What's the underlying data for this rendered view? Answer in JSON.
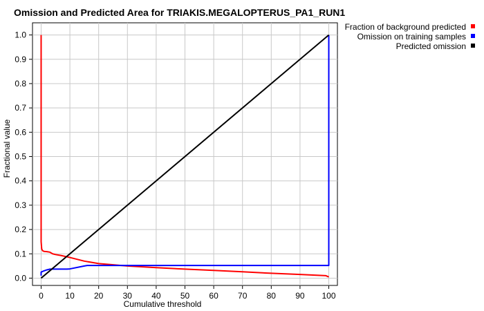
{
  "chart_data": {
    "type": "line",
    "title": "Omission and Predicted Area for TRIAKIS.MEGALOPTERUS_PA1_RUN1",
    "xlabel": "Cumulative threshold",
    "ylabel": "Fractional value",
    "xlim": [
      -3,
      103
    ],
    "ylim": [
      -0.03,
      1.05
    ],
    "xticks": [
      0,
      10,
      20,
      30,
      40,
      50,
      60,
      70,
      80,
      90,
      100
    ],
    "yticks": [
      0.0,
      0.1,
      0.2,
      0.3,
      0.4,
      0.5,
      0.6,
      0.7,
      0.8,
      0.9,
      1.0
    ],
    "grid": true,
    "legend_position": "top-right, outside plot",
    "series": [
      {
        "name": "Fraction of background predicted",
        "color": "#ff0000",
        "x": [
          0,
          0,
          0.2,
          0.5,
          1,
          2,
          3,
          4,
          5,
          7,
          10,
          15,
          20,
          30,
          40,
          50,
          60,
          70,
          80,
          90,
          99,
          100
        ],
        "y": [
          1.0,
          0.15,
          0.12,
          0.113,
          0.11,
          0.109,
          0.107,
          0.1,
          0.097,
          0.093,
          0.085,
          0.07,
          0.06,
          0.05,
          0.043,
          0.037,
          0.032,
          0.026,
          0.02,
          0.015,
          0.01,
          0.005
        ]
      },
      {
        "name": "Omission on training samples",
        "color": "#0000ff",
        "x": [
          0,
          0,
          1,
          2,
          3,
          9,
          10,
          15,
          16,
          100,
          100
        ],
        "y": [
          0.01,
          0.025,
          0.03,
          0.034,
          0.037,
          0.037,
          0.038,
          0.05,
          0.052,
          0.052,
          1.0
        ]
      },
      {
        "name": "Predicted omission",
        "color": "#000000",
        "x": [
          0,
          100
        ],
        "y": [
          0.0,
          1.0
        ]
      }
    ]
  }
}
